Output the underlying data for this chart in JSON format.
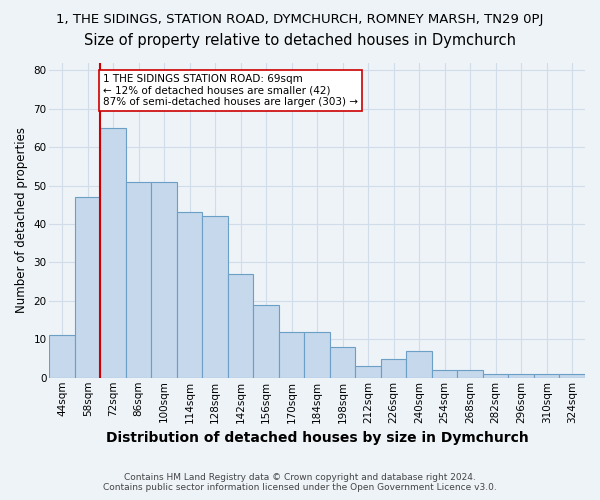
{
  "title1": "1, THE SIDINGS, STATION ROAD, DYMCHURCH, ROMNEY MARSH, TN29 0PJ",
  "title2": "Size of property relative to detached houses in Dymchurch",
  "xlabel": "Distribution of detached houses by size in Dymchurch",
  "ylabel": "Number of detached properties",
  "categories": [
    "44sqm",
    "58sqm",
    "72sqm",
    "86sqm",
    "100sqm",
    "114sqm",
    "128sqm",
    "142sqm",
    "156sqm",
    "170sqm",
    "184sqm",
    "198sqm",
    "212sqm",
    "226sqm",
    "240sqm",
    "254sqm",
    "268sqm",
    "282sqm",
    "296sqm",
    "310sqm",
    "324sqm"
  ],
  "values": [
    11,
    47,
    65,
    51,
    51,
    43,
    42,
    27,
    19,
    12,
    12,
    8,
    3,
    5,
    7,
    2,
    2,
    1,
    1,
    1,
    1
  ],
  "bar_color": "#c5d8ec",
  "bar_edge_color": "#6b9fc5",
  "vline_color": "#cc0000",
  "annotation_line1": "1 THE SIDINGS STATION ROAD: 69sqm",
  "annotation_line2": "← 12% of detached houses are smaller (42)",
  "annotation_line3": "87% of semi-detached houses are larger (303) →",
  "footer1": "Contains HM Land Registry data © Crown copyright and database right 2024.",
  "footer2": "Contains public sector information licensed under the Open Government Licence v3.0.",
  "ylim_max": 82,
  "bg_color": "#eef3f8",
  "grid_color": "#d0dce8",
  "title1_fontsize": 9.5,
  "title2_fontsize": 10.5,
  "xlabel_fontsize": 10,
  "ylabel_fontsize": 8.5,
  "tick_fontsize": 7.5,
  "ann_fontsize": 7.5,
  "footer_fontsize": 6.5
}
